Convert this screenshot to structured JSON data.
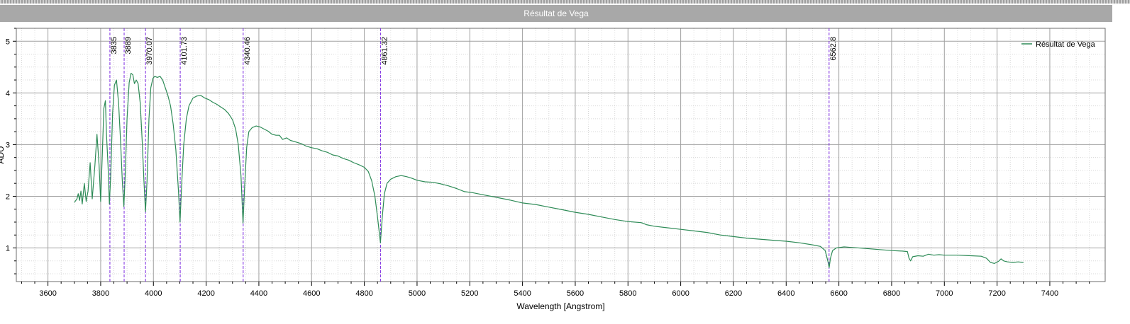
{
  "window": {
    "title": "Résultat de Vega"
  },
  "chart_data": {
    "type": "line",
    "title": "",
    "xlabel": "Wavelength [Angstrom]",
    "ylabel": "ADU",
    "xlim": [
      3480,
      7610
    ],
    "ylim": [
      0.35,
      5.25
    ],
    "x_ticks": [
      3600,
      3800,
      4000,
      4200,
      4400,
      4600,
      4800,
      5000,
      5200,
      5400,
      5600,
      5800,
      6000,
      6200,
      6400,
      6600,
      6800,
      7000,
      7200,
      7400
    ],
    "y_ticks": [
      1,
      2,
      3,
      4,
      5
    ],
    "grid": true,
    "legend": {
      "position": "top-right",
      "entries": [
        "Résultat de Vega"
      ]
    },
    "colors": {
      "series": "#2e8b57",
      "marker": "#7b28e0",
      "grid": "#a0a0a0",
      "minor_grid": "#d8d8d8"
    },
    "line_markers": [
      {
        "x": 3835,
        "label": "3835"
      },
      {
        "x": 3889,
        "label": "3889"
      },
      {
        "x": 3970.07,
        "label": "3970.07"
      },
      {
        "x": 4101.73,
        "label": "4101.73"
      },
      {
        "x": 4340.46,
        "label": "4340.46"
      },
      {
        "x": 4861.32,
        "label": "4861.32"
      },
      {
        "x": 6562.8,
        "label": "6562.8"
      }
    ],
    "series": [
      {
        "name": "Résultat de Vega",
        "points": [
          [
            3700,
            1.88
          ],
          [
            3710,
            1.95
          ],
          [
            3715,
            2.05
          ],
          [
            3720,
            1.92
          ],
          [
            3725,
            2.1
          ],
          [
            3730,
            1.85
          ],
          [
            3738,
            2.25
          ],
          [
            3745,
            1.9
          ],
          [
            3752,
            2.1
          ],
          [
            3760,
            2.65
          ],
          [
            3768,
            1.95
          ],
          [
            3778,
            2.6
          ],
          [
            3786,
            3.2
          ],
          [
            3794,
            2.6
          ],
          [
            3800,
            1.9
          ],
          [
            3806,
            2.8
          ],
          [
            3812,
            3.7
          ],
          [
            3818,
            3.85
          ],
          [
            3822,
            3.2
          ],
          [
            3828,
            2.6
          ],
          [
            3833,
            1.85
          ],
          [
            3838,
            2.4
          ],
          [
            3845,
            3.6
          ],
          [
            3852,
            4.15
          ],
          [
            3860,
            4.25
          ],
          [
            3868,
            3.8
          ],
          [
            3876,
            3.0
          ],
          [
            3882,
            2.3
          ],
          [
            3888,
            1.8
          ],
          [
            3893,
            2.4
          ],
          [
            3900,
            3.5
          ],
          [
            3908,
            4.2
          ],
          [
            3915,
            4.38
          ],
          [
            3922,
            4.35
          ],
          [
            3928,
            4.18
          ],
          [
            3935,
            4.25
          ],
          [
            3942,
            4.18
          ],
          [
            3950,
            3.8
          ],
          [
            3958,
            3.0
          ],
          [
            3964,
            2.3
          ],
          [
            3970,
            1.7
          ],
          [
            3976,
            2.3
          ],
          [
            3983,
            3.5
          ],
          [
            3990,
            4.1
          ],
          [
            3998,
            4.28
          ],
          [
            4005,
            4.32
          ],
          [
            4015,
            4.3
          ],
          [
            4025,
            4.32
          ],
          [
            4035,
            4.25
          ],
          [
            4045,
            4.1
          ],
          [
            4055,
            3.95
          ],
          [
            4065,
            3.75
          ],
          [
            4075,
            3.4
          ],
          [
            4085,
            2.9
          ],
          [
            4095,
            2.1
          ],
          [
            4101,
            1.5
          ],
          [
            4107,
            2.2
          ],
          [
            4115,
            3.0
          ],
          [
            4125,
            3.5
          ],
          [
            4135,
            3.75
          ],
          [
            4150,
            3.9
          ],
          [
            4165,
            3.94
          ],
          [
            4180,
            3.95
          ],
          [
            4195,
            3.9
          ],
          [
            4210,
            3.87
          ],
          [
            4225,
            3.82
          ],
          [
            4240,
            3.78
          ],
          [
            4255,
            3.73
          ],
          [
            4270,
            3.68
          ],
          [
            4285,
            3.6
          ],
          [
            4300,
            3.48
          ],
          [
            4312,
            3.3
          ],
          [
            4322,
            3.0
          ],
          [
            4332,
            2.4
          ],
          [
            4340,
            1.48
          ],
          [
            4346,
            2.2
          ],
          [
            4354,
            2.95
          ],
          [
            4362,
            3.25
          ],
          [
            4375,
            3.33
          ],
          [
            4390,
            3.36
          ],
          [
            4405,
            3.34
          ],
          [
            4420,
            3.3
          ],
          [
            4435,
            3.26
          ],
          [
            4450,
            3.2
          ],
          [
            4465,
            3.18
          ],
          [
            4478,
            3.18
          ],
          [
            4490,
            3.1
          ],
          [
            4505,
            3.13
          ],
          [
            4520,
            3.08
          ],
          [
            4540,
            3.05
          ],
          [
            4560,
            3.02
          ],
          [
            4580,
            2.97
          ],
          [
            4600,
            2.94
          ],
          [
            4620,
            2.92
          ],
          [
            4640,
            2.88
          ],
          [
            4660,
            2.85
          ],
          [
            4680,
            2.8
          ],
          [
            4700,
            2.78
          ],
          [
            4720,
            2.73
          ],
          [
            4740,
            2.7
          ],
          [
            4760,
            2.65
          ],
          [
            4780,
            2.61
          ],
          [
            4800,
            2.56
          ],
          [
            4815,
            2.48
          ],
          [
            4828,
            2.3
          ],
          [
            4840,
            2.0
          ],
          [
            4850,
            1.6
          ],
          [
            4861,
            1.1
          ],
          [
            4868,
            1.6
          ],
          [
            4876,
            2.05
          ],
          [
            4886,
            2.25
          ],
          [
            4900,
            2.33
          ],
          [
            4920,
            2.38
          ],
          [
            4940,
            2.4
          ],
          [
            4960,
            2.38
          ],
          [
            4980,
            2.35
          ],
          [
            5000,
            2.31
          ],
          [
            5030,
            2.28
          ],
          [
            5060,
            2.27
          ],
          [
            5090,
            2.24
          ],
          [
            5120,
            2.2
          ],
          [
            5150,
            2.15
          ],
          [
            5180,
            2.09
          ],
          [
            5210,
            2.07
          ],
          [
            5250,
            2.03
          ],
          [
            5300,
            1.98
          ],
          [
            5350,
            1.93
          ],
          [
            5400,
            1.87
          ],
          [
            5450,
            1.84
          ],
          [
            5500,
            1.79
          ],
          [
            5550,
            1.74
          ],
          [
            5600,
            1.69
          ],
          [
            5650,
            1.65
          ],
          [
            5700,
            1.6
          ],
          [
            5750,
            1.55
          ],
          [
            5800,
            1.51
          ],
          [
            5850,
            1.49
          ],
          [
            5870,
            1.45
          ],
          [
            5900,
            1.42
          ],
          [
            5950,
            1.39
          ],
          [
            6000,
            1.36
          ],
          [
            6050,
            1.33
          ],
          [
            6100,
            1.3
          ],
          [
            6150,
            1.25
          ],
          [
            6200,
            1.22
          ],
          [
            6250,
            1.19
          ],
          [
            6300,
            1.17
          ],
          [
            6350,
            1.15
          ],
          [
            6400,
            1.13
          ],
          [
            6450,
            1.1
          ],
          [
            6500,
            1.06
          ],
          [
            6530,
            1.03
          ],
          [
            6548,
            0.95
          ],
          [
            6558,
            0.75
          ],
          [
            6563,
            0.62
          ],
          [
            6568,
            0.8
          ],
          [
            6576,
            0.95
          ],
          [
            6590,
            1.0
          ],
          [
            6620,
            1.02
          ],
          [
            6650,
            1.01
          ],
          [
            6700,
            0.99
          ],
          [
            6750,
            0.97
          ],
          [
            6800,
            0.95
          ],
          [
            6840,
            0.94
          ],
          [
            6860,
            0.93
          ],
          [
            6866,
            0.8
          ],
          [
            6872,
            0.75
          ],
          [
            6880,
            0.83
          ],
          [
            6900,
            0.85
          ],
          [
            6920,
            0.84
          ],
          [
            6940,
            0.88
          ],
          [
            6960,
            0.86
          ],
          [
            6980,
            0.87
          ],
          [
            7000,
            0.86
          ],
          [
            7050,
            0.86
          ],
          [
            7100,
            0.85
          ],
          [
            7140,
            0.84
          ],
          [
            7160,
            0.8
          ],
          [
            7175,
            0.72
          ],
          [
            7190,
            0.7
          ],
          [
            7205,
            0.74
          ],
          [
            7215,
            0.79
          ],
          [
            7225,
            0.75
          ],
          [
            7240,
            0.73
          ],
          [
            7260,
            0.72
          ],
          [
            7280,
            0.73
          ],
          [
            7300,
            0.72
          ]
        ]
      }
    ]
  }
}
